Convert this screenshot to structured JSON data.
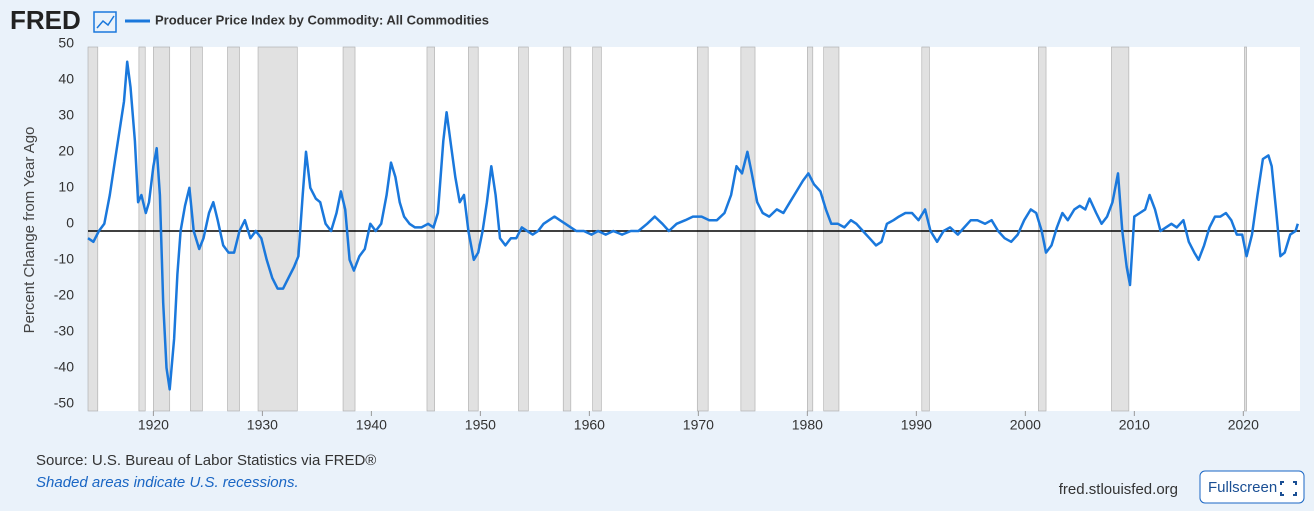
{
  "chart_data": {
    "type": "line",
    "logo": "FRED",
    "ylabel": "Percent Change from Year Ago",
    "source": "Source: U.S. Bureau of Labor Statistics via FRED®",
    "note": "Shaded areas indicate U.S. recessions.",
    "site": "fred.stlouisfed.org",
    "button": "Fullscreen",
    "xlim": [
      1914,
      2025.2
    ],
    "ylim": [
      -50,
      50
    ],
    "xticks": [
      1920,
      1930,
      1940,
      1950,
      1960,
      1970,
      1980,
      1990,
      2000,
      2010,
      2020
    ],
    "yticks": [
      -50,
      -40,
      -30,
      -20,
      -10,
      0,
      10,
      20,
      30,
      40,
      50
    ],
    "grid": false,
    "recession_color": "#e1e1e1",
    "recessions": [
      [
        1913.0,
        1914.9
      ],
      [
        1918.67,
        1919.25
      ],
      [
        1920.0,
        1921.5
      ],
      [
        1923.4,
        1924.5
      ],
      [
        1926.8,
        1927.9
      ],
      [
        1929.6,
        1933.2
      ],
      [
        1937.4,
        1938.5
      ],
      [
        1945.1,
        1945.8
      ],
      [
        1948.9,
        1949.8
      ],
      [
        1953.5,
        1954.4
      ],
      [
        1957.6,
        1958.3
      ],
      [
        1960.3,
        1961.1
      ],
      [
        1969.9,
        1970.9
      ],
      [
        1973.9,
        1975.2
      ],
      [
        1980.0,
        1980.5
      ],
      [
        1981.5,
        1982.9
      ],
      [
        1990.5,
        1991.2
      ],
      [
        2001.2,
        2001.9
      ],
      [
        2007.9,
        2009.5
      ],
      [
        2020.1,
        2020.3
      ]
    ],
    "x": [
      1914.0,
      1914.5,
      1915.0,
      1915.5,
      1916.0,
      1916.5,
      1917.0,
      1917.3,
      1917.6,
      1917.9,
      1918.3,
      1918.6,
      1918.9,
      1919.3,
      1919.6,
      1920.0,
      1920.3,
      1920.6,
      1920.9,
      1921.2,
      1921.5,
      1921.9,
      1922.2,
      1922.5,
      1922.9,
      1923.3,
      1923.7,
      1924.2,
      1924.6,
      1925.1,
      1925.5,
      1925.9,
      1926.4,
      1926.9,
      1927.4,
      1927.9,
      1928.4,
      1928.9,
      1929.4,
      1929.9,
      1930.4,
      1930.9,
      1931.4,
      1931.9,
      1932.4,
      1932.9,
      1933.3,
      1933.7,
      1934.0,
      1934.4,
      1934.9,
      1935.3,
      1935.8,
      1936.3,
      1936.8,
      1937.2,
      1937.6,
      1938.0,
      1938.4,
      1938.9,
      1939.4,
      1939.9,
      1940.4,
      1940.9,
      1941.4,
      1941.8,
      1942.2,
      1942.6,
      1943.0,
      1943.5,
      1944.0,
      1944.6,
      1945.2,
      1945.7,
      1946.1,
      1946.6,
      1946.9,
      1947.3,
      1947.7,
      1948.1,
      1948.5,
      1948.9,
      1949.4,
      1949.8,
      1950.2,
      1950.6,
      1951.0,
      1951.4,
      1951.8,
      1952.3,
      1952.8,
      1953.3,
      1953.8,
      1954.3,
      1954.8,
      1955.3,
      1955.8,
      1956.3,
      1956.8,
      1957.3,
      1957.8,
      1958.3,
      1958.8,
      1959.5,
      1960.2,
      1960.8,
      1961.5,
      1962.2,
      1963.0,
      1963.8,
      1964.5,
      1965.3,
      1966.0,
      1966.7,
      1967.3,
      1968.0,
      1968.8,
      1969.5,
      1970.3,
      1971.0,
      1971.7,
      1972.4,
      1973.0,
      1973.5,
      1974.0,
      1974.5,
      1974.9,
      1975.4,
      1975.9,
      1976.5,
      1977.2,
      1977.8,
      1978.4,
      1979.0,
      1979.6,
      1980.1,
      1980.6,
      1981.2,
      1981.7,
      1982.2,
      1982.8,
      1983.4,
      1984.0,
      1984.5,
      1985.1,
      1985.7,
      1986.3,
      1986.8,
      1987.3,
      1987.9,
      1988.4,
      1989.0,
      1989.6,
      1990.2,
      1990.8,
      1991.3,
      1991.9,
      1992.5,
      1993.1,
      1993.8,
      1994.4,
      1995.0,
      1995.6,
      1996.3,
      1996.9,
      1997.5,
      1998.1,
      1998.7,
      1999.3,
      1999.9,
      2000.5,
      2001.0,
      2001.5,
      2001.9,
      2002.4,
      2002.9,
      2003.4,
      2003.9,
      2004.5,
      2005.0,
      2005.5,
      2005.9,
      2006.5,
      2007.0,
      2007.5,
      2008.0,
      2008.5,
      2008.9,
      2009.3,
      2009.6,
      2010.0,
      2010.5,
      2011.0,
      2011.4,
      2011.9,
      2012.4,
      2012.9,
      2013.4,
      2013.9,
      2014.5,
      2015.0,
      2015.5,
      2015.9,
      2016.4,
      2016.9,
      2017.4,
      2017.9,
      2018.4,
      2018.9,
      2019.4,
      2019.9,
      2020.3,
      2020.8,
      2021.3,
      2021.8,
      2022.3,
      2022.6,
      2023.0,
      2023.4,
      2023.8,
      2024.3,
      2024.8,
      2025.0
    ],
    "series": [
      {
        "name": "Producer Price Index by Commodity: All Commodities",
        "color": "#1a78dc",
        "values": [
          -2,
          -3,
          0,
          2,
          10,
          20,
          30,
          36,
          47,
          40,
          25,
          8,
          10,
          5,
          8,
          18,
          23,
          10,
          -20,
          -38,
          -44,
          -30,
          -12,
          0,
          7,
          12,
          0,
          -5,
          -2,
          5,
          8,
          3,
          -4,
          -6,
          -6,
          0,
          3,
          -2,
          0,
          -2,
          -8,
          -13,
          -16,
          -16,
          -13,
          -10,
          -7,
          10,
          22,
          12,
          9,
          8,
          2,
          0,
          5,
          11,
          6,
          -8,
          -11,
          -7,
          -5,
          2,
          0,
          2,
          10,
          19,
          15,
          8,
          4,
          2,
          1,
          1,
          2,
          1,
          5,
          25,
          33,
          24,
          15,
          8,
          10,
          0,
          -8,
          -6,
          0,
          8,
          18,
          10,
          -2,
          -4,
          -2,
          -2,
          1,
          0,
          -1,
          0,
          2,
          3,
          4,
          3,
          2,
          1,
          0,
          0,
          -1,
          0,
          -1,
          0,
          -1,
          0,
          0,
          2,
          4,
          2,
          0,
          2,
          3,
          4,
          4,
          3,
          3,
          5,
          10,
          18,
          16,
          22,
          16,
          8,
          5,
          4,
          6,
          5,
          8,
          11,
          14,
          16,
          13,
          11,
          6,
          2,
          2,
          1,
          3,
          2,
          0,
          -2,
          -4,
          -3,
          2,
          3,
          4,
          5,
          5,
          3,
          6,
          0,
          -3,
          0,
          1,
          -1,
          1,
          3,
          3,
          2,
          3,
          0,
          -2,
          -3,
          -1,
          3,
          6,
          5,
          0,
          -6,
          -4,
          1,
          5,
          3,
          6,
          7,
          6,
          9,
          5,
          2,
          4,
          8,
          16,
          0,
          -10,
          -15,
          4,
          5,
          6,
          10,
          6,
          0,
          1,
          2,
          1,
          3,
          -3,
          -6,
          -8,
          -4,
          1,
          4,
          4,
          5,
          3,
          -1,
          -1,
          -7,
          -1,
          10,
          20,
          21,
          18,
          6,
          -7,
          -6,
          -1,
          0,
          2
        ]
      }
    ]
  }
}
